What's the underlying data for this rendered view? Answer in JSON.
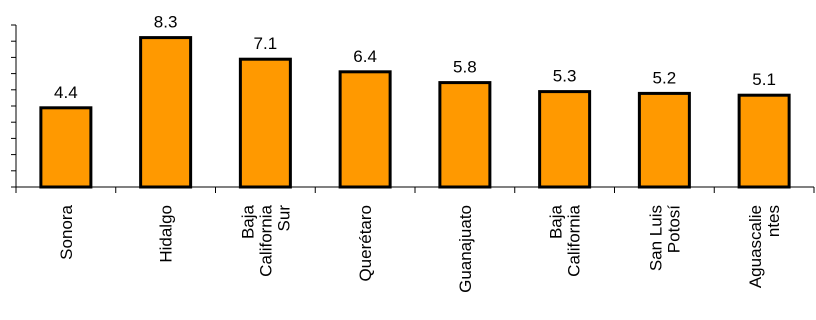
{
  "chart_data": {
    "type": "bar",
    "categories": [
      [
        "Sonora"
      ],
      [
        "Hidalgo"
      ],
      [
        "Baja",
        "California",
        "Sur"
      ],
      [
        "Querétaro"
      ],
      [
        "Guanajuato"
      ],
      [
        "Baja",
        "California"
      ],
      [
        "San Luis",
        "Potosí"
      ],
      [
        "Aguascalie",
        "ntes"
      ]
    ],
    "values": [
      4.4,
      8.3,
      7.1,
      6.4,
      5.8,
      5.3,
      5.2,
      5.1
    ],
    "data_labels": [
      "4.4",
      "8.3",
      "7.1",
      "6.4",
      "5.8",
      "5.3",
      "5.2",
      "5.1"
    ],
    "title": "",
    "xlabel": "",
    "ylabel": "",
    "ylim": [
      0,
      9
    ],
    "y_tick_step": 0.9,
    "tick_labels_visible": false,
    "grid": false,
    "bar_color": "#FF9900",
    "bar_edge_color": "#000000"
  }
}
